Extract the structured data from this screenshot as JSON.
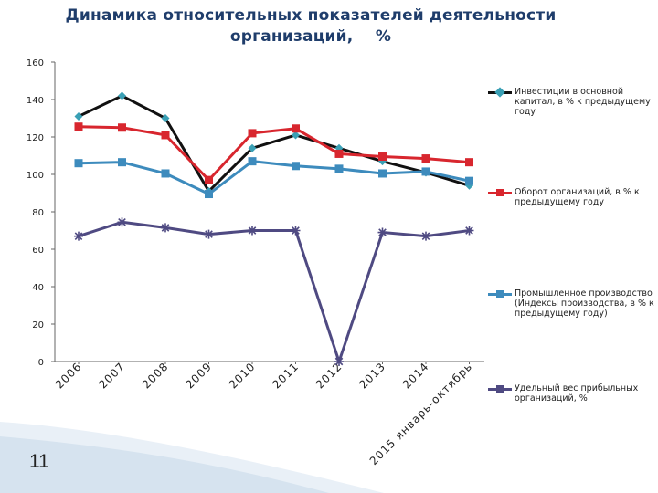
{
  "title_line1": "Динамика относительных показателей деятельности",
  "title_line2": "организаций,    %",
  "slide_number": "11",
  "chart_data": {
    "type": "line",
    "title": "Динамика относительных показателей деятельности организаций, %",
    "categories": [
      "2006",
      "2007",
      "2008",
      "2009",
      "2010",
      "2011",
      "2012",
      "2013",
      "2014",
      "2015 январь-октябрь"
    ],
    "ylim": [
      0,
      160
    ],
    "yticks": [
      0,
      20,
      40,
      60,
      80,
      100,
      120,
      140,
      160
    ],
    "grid": false,
    "legend": "right",
    "series": [
      {
        "name": "Инвестиции в основной капитал, в % к предыдущему году",
        "color": "#111111",
        "marker": "diamond",
        "marker_color": "#3aa0b5",
        "values": [
          131,
          142,
          130,
          91,
          114,
          121,
          114,
          107,
          101,
          94
        ]
      },
      {
        "name": "Оборот организаций, в % к предыдущему году",
        "color": "#d8262e",
        "marker": "square",
        "marker_color": "#d8262e",
        "values": [
          125.5,
          125,
          121,
          97,
          122,
          124.5,
          111,
          109.5,
          108.5,
          106.5
        ]
      },
      {
        "name": "Промышленное производство (Индексы производства, в % к предыдущему году)",
        "color": "#3d8bbd",
        "marker": "square",
        "marker_color": "#3d8bbd",
        "values": [
          106,
          106.5,
          100.5,
          89.5,
          107,
          104.5,
          103,
          100.5,
          101.5,
          96.5
        ]
      },
      {
        "name": "Удельный вес прибыльных организаций, %",
        "color": "#4f4a82",
        "marker": "star",
        "marker_color": "#4f4a82",
        "values": [
          67,
          74.5,
          71.5,
          68,
          70,
          70,
          0,
          69,
          67,
          70
        ]
      }
    ]
  }
}
